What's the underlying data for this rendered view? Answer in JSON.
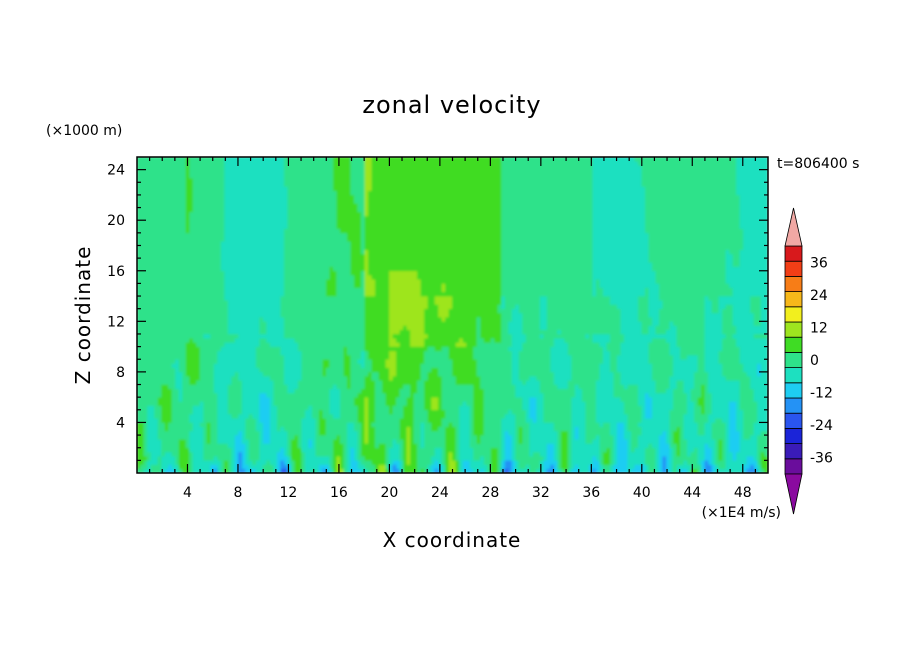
{
  "chart_data": {
    "type": "heatmap",
    "title": "zonal velocity",
    "xlabel": "X coordinate",
    "ylabel": "Z coordinate",
    "y_unit": "(×1000 m)",
    "x_unit": "(×1E4 m/s)",
    "time_label": "t=806400 s",
    "xlim": [
      0,
      50
    ],
    "ylim": [
      0,
      25
    ],
    "x_ticks": [
      4,
      8,
      12,
      16,
      20,
      24,
      28,
      32,
      36,
      40,
      44,
      48
    ],
    "y_ticks": [
      4,
      8,
      12,
      16,
      20,
      24
    ],
    "colorbar": {
      "levels": [
        -42,
        -36,
        -30,
        -24,
        -18,
        -12,
        -6,
        0,
        6,
        12,
        18,
        24,
        30,
        36,
        42
      ],
      "colors": [
        "#6a0d9c",
        "#3a1bb8",
        "#1b24d8",
        "#2a55ef",
        "#2492f5",
        "#1ecdf2",
        "#1de0c0",
        "#2ee28a",
        "#3fdc24",
        "#9ee51f",
        "#f2ef1e",
        "#f7b81a",
        "#f77d17",
        "#f23e16",
        "#d8191c"
      ],
      "under_color": "#8a0a9f",
      "over_color": "#f1a8a4",
      "tick_labels": [
        "36",
        "24",
        "12",
        "0",
        "-12",
        "-24",
        "-36"
      ]
    }
  }
}
